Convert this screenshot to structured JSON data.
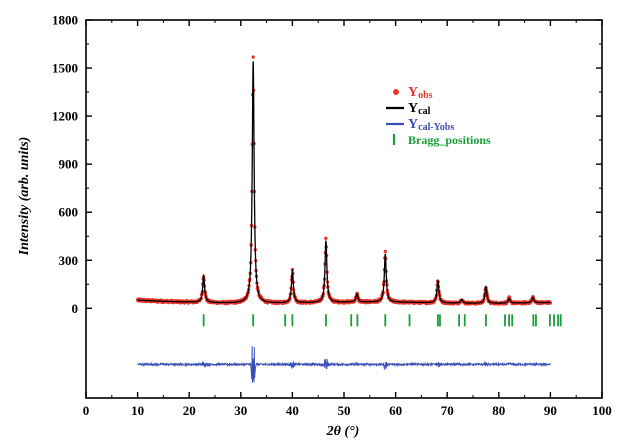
{
  "chart_data": {
    "type": "line",
    "title": "",
    "xlabel": "2θ (°)",
    "ylabel": "Intensity (arb. units)",
    "xlim": [
      0,
      100
    ],
    "ylim": [
      -560,
      1800
    ],
    "grid": false,
    "legend_position": "top-right",
    "x_ticks": [
      0,
      10,
      20,
      30,
      40,
      50,
      60,
      70,
      80,
      90,
      100
    ],
    "y_ticks": [
      0,
      300,
      600,
      900,
      1200,
      1500,
      1800
    ],
    "legend": [
      {
        "key": "obs",
        "main": "Y",
        "sub": "obs",
        "color": "#e8352b",
        "marker": "dot"
      },
      {
        "key": "cal",
        "main": "Y",
        "sub": "cal",
        "color": "#000000",
        "marker": "line"
      },
      {
        "key": "diff",
        "main": "Y",
        "sub": "cal-Yobs",
        "color": "#3a4fb5",
        "marker": "line"
      },
      {
        "key": "bragg",
        "main": "Bragg_positions",
        "sub": "",
        "color": "#1a9e3a",
        "marker": "bar"
      }
    ],
    "series": [
      {
        "key": "obs",
        "background": 35,
        "x_start": 10,
        "x_end": 90,
        "color": "#e8352b"
      },
      {
        "key": "cal",
        "background": 35,
        "x_start": 10,
        "x_end": 90,
        "color": "#000000"
      },
      {
        "key": "diff",
        "offset": -350,
        "x_start": 10,
        "x_end": 90,
        "color": "#3a4fb5"
      }
    ],
    "peaks": [
      {
        "x": 22.8,
        "height": 170
      },
      {
        "x": 32.4,
        "height": 1510
      },
      {
        "x": 40.0,
        "height": 200
      },
      {
        "x": 46.5,
        "height": 385
      },
      {
        "x": 52.5,
        "height": 50
      },
      {
        "x": 58.0,
        "height": 300
      },
      {
        "x": 68.2,
        "height": 140
      },
      {
        "x": 72.8,
        "height": 25
      },
      {
        "x": 77.5,
        "height": 105
      },
      {
        "x": 82.0,
        "height": 30
      },
      {
        "x": 86.6,
        "height": 35
      }
    ],
    "bragg_positions": {
      "y": -75,
      "x": [
        22.8,
        32.4,
        38.6,
        40.0,
        46.5,
        51.4,
        52.6,
        58.0,
        62.7,
        68.2,
        68.6,
        72.3,
        73.4,
        77.5,
        81.2,
        82.0,
        82.6,
        86.7,
        87.2,
        89.9,
        90.7,
        91.5,
        92.0
      ]
    }
  }
}
